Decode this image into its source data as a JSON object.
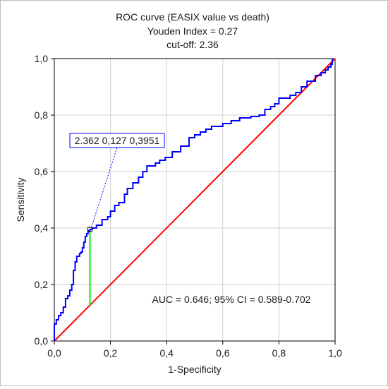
{
  "chart_data": {
    "type": "line",
    "title_lines": [
      "ROC curve (EASIX value vs death)",
      "Youden Index = 0.27",
      "cut-off: 2.36"
    ],
    "xlabel": "1-Specificity",
    "ylabel": "Sensitivity",
    "xlim": [
      0,
      1
    ],
    "ylim": [
      0,
      1
    ],
    "xticks": [
      "0,0",
      "0,2",
      "0,4",
      "0,6",
      "0,8",
      "1,0"
    ],
    "yticks": [
      "0,0",
      "0,2",
      "0,4",
      "0,6",
      "0,8",
      "1,0"
    ],
    "grid": true,
    "colors": {
      "roc": "#0000ff",
      "reference": "#ff0000",
      "youden": "#00ee00",
      "text": "#1a1a1a"
    },
    "annotation": "AUC = 0.646; 95% CI = 0.589-0.702",
    "cutoff_label": "2.362 0,127 0,3951",
    "cutoff_point": {
      "x": 0.127,
      "y": 0.3951
    },
    "reference_line": {
      "x": [
        0,
        1
      ],
      "y": [
        0,
        1
      ]
    },
    "roc_curve": {
      "x": [
        0,
        0,
        0.007,
        0.007,
        0.015,
        0.015,
        0.023,
        0.023,
        0.032,
        0.032,
        0.04,
        0.04,
        0.048,
        0.048,
        0.055,
        0.055,
        0.062,
        0.062,
        0.068,
        0.068,
        0.074,
        0.074,
        0.08,
        0.08,
        0.085,
        0.085,
        0.09,
        0.09,
        0.095,
        0.095,
        0.1,
        0.1,
        0.105,
        0.105,
        0.11,
        0.11,
        0.115,
        0.115,
        0.12,
        0.12,
        0.127,
        0.127,
        0.135,
        0.135,
        0.15,
        0.15,
        0.17,
        0.17,
        0.19,
        0.19,
        0.2,
        0.2,
        0.215,
        0.215,
        0.23,
        0.23,
        0.25,
        0.25,
        0.26,
        0.26,
        0.28,
        0.28,
        0.3,
        0.3,
        0.315,
        0.315,
        0.33,
        0.33,
        0.36,
        0.36,
        0.375,
        0.375,
        0.395,
        0.395,
        0.42,
        0.42,
        0.45,
        0.45,
        0.48,
        0.48,
        0.5,
        0.5,
        0.52,
        0.52,
        0.54,
        0.54,
        0.56,
        0.56,
        0.6,
        0.6,
        0.63,
        0.63,
        0.66,
        0.66,
        0.7,
        0.7,
        0.73,
        0.73,
        0.75,
        0.75,
        0.77,
        0.77,
        0.785,
        0.785,
        0.8,
        0.8,
        0.84,
        0.84,
        0.86,
        0.86,
        0.88,
        0.88,
        0.9,
        0.9,
        0.93,
        0.93,
        0.95,
        0.95,
        0.965,
        0.965,
        0.975,
        0.975,
        0.985,
        0.985,
        0.99,
        0.99
      ],
      "y": [
        0,
        0.06,
        0.06,
        0.075,
        0.075,
        0.09,
        0.09,
        0.1,
        0.1,
        0.12,
        0.12,
        0.15,
        0.15,
        0.16,
        0.16,
        0.18,
        0.18,
        0.2,
        0.2,
        0.25,
        0.25,
        0.28,
        0.28,
        0.3,
        0.3,
        0.3,
        0.3,
        0.31,
        0.31,
        0.315,
        0.315,
        0.33,
        0.33,
        0.35,
        0.35,
        0.37,
        0.37,
        0.38,
        0.38,
        0.39,
        0.39,
        0.3951,
        0.3951,
        0.4,
        0.4,
        0.41,
        0.41,
        0.43,
        0.43,
        0.44,
        0.44,
        0.46,
        0.46,
        0.48,
        0.48,
        0.49,
        0.49,
        0.52,
        0.52,
        0.54,
        0.54,
        0.56,
        0.56,
        0.58,
        0.58,
        0.6,
        0.6,
        0.62,
        0.62,
        0.63,
        0.63,
        0.64,
        0.64,
        0.65,
        0.65,
        0.67,
        0.67,
        0.69,
        0.69,
        0.72,
        0.72,
        0.73,
        0.73,
        0.74,
        0.74,
        0.75,
        0.75,
        0.76,
        0.76,
        0.77,
        0.77,
        0.78,
        0.78,
        0.79,
        0.79,
        0.795,
        0.795,
        0.8,
        0.8,
        0.82,
        0.82,
        0.83,
        0.83,
        0.84,
        0.84,
        0.86,
        0.86,
        0.87,
        0.87,
        0.88,
        0.88,
        0.9,
        0.9,
        0.92,
        0.92,
        0.94,
        0.94,
        0.95,
        0.95,
        0.96,
        0.96,
        0.97,
        0.97,
        0.98,
        0.98,
        1.0
      ]
    }
  }
}
